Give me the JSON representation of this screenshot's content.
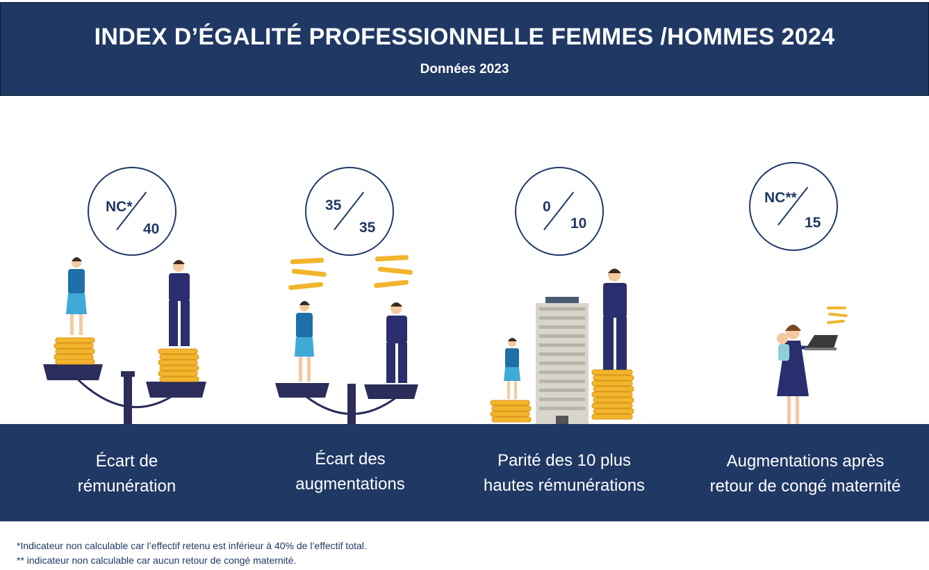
{
  "header": {
    "title": "INDEX D’ÉGALITÉ PROFESSIONNELLE FEMMES /HOMMES 2024",
    "subtitle": "Données 2023"
  },
  "indicators": [
    {
      "score": "NC*",
      "max": "40",
      "label_line1": "Écart de",
      "label_line2": "rémunération"
    },
    {
      "score": "35",
      "max": "35",
      "label_line1": "Écart des",
      "label_line2": "augmentations"
    },
    {
      "score": "0",
      "max": "10",
      "label_line1": "Parité des 10 plus",
      "label_line2": "hautes rémunérations"
    },
    {
      "score": "NC**",
      "max": "15",
      "label_line1": "Augmentations après",
      "label_line2": "retour de congé maternité"
    }
  ],
  "footnotes": [
    "*Indicateur non calculable car l’effectif retenu est inférieur à 40% de l’effectif total.",
    "** indicateur non calculable car aucun retour de congé maternité."
  ],
  "colors": {
    "navy": "#1f3864",
    "gold": "#f2b52c",
    "woman_dress": "#3fa9d8",
    "suit": "#2a2e6e"
  }
}
